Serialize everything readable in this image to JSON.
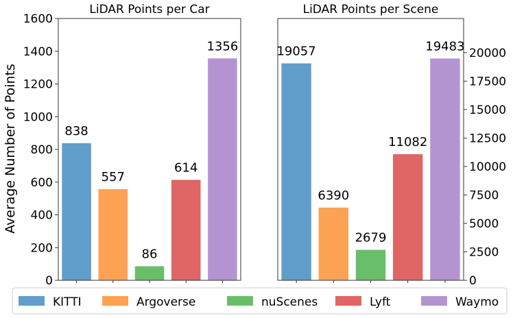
{
  "ylabel": "Average Number of Points",
  "legend": {
    "placement": "bottom",
    "entries": [
      {
        "label": "KITTI",
        "color": "#5f9ecb"
      },
      {
        "label": "Argoverse",
        "color": "#fda254"
      },
      {
        "label": "nuScenes",
        "color": "#69bf69"
      },
      {
        "label": "Lyft",
        "color": "#e06566"
      },
      {
        "label": "Waymo",
        "color": "#b394d0"
      }
    ]
  },
  "chart_data": [
    {
      "type": "bar",
      "title": "LiDAR Points per Car",
      "categories": [
        "KITTI",
        "Argoverse",
        "nuScenes",
        "Lyft",
        "Waymo"
      ],
      "values": [
        838,
        557,
        86,
        614,
        1356
      ],
      "value_labels": [
        "838",
        "557",
        "86",
        "614",
        "1356"
      ],
      "ylim": [
        0,
        1600
      ],
      "yticks": [
        0,
        200,
        400,
        600,
        800,
        1000,
        1200,
        1400,
        1600
      ],
      "ytick_labels": [
        "0",
        "200",
        "400",
        "600",
        "800",
        "1000",
        "1200",
        "1400",
        "1600"
      ],
      "yaxis_side": "left",
      "xlabel": "",
      "ylabel": "Average Number of Points",
      "grid": false
    },
    {
      "type": "bar",
      "title": "LiDAR Points per Scene",
      "categories": [
        "KITTI",
        "Argoverse",
        "nuScenes",
        "Lyft",
        "Waymo"
      ],
      "values": [
        19057,
        6390,
        2679,
        11082,
        19483
      ],
      "value_labels": [
        "19057",
        "6390",
        "2679",
        "11082",
        "19483"
      ],
      "ylim": [
        0,
        23000
      ],
      "yticks": [
        0,
        2500,
        5000,
        7500,
        10000,
        12500,
        15000,
        17500,
        20000
      ],
      "ytick_labels": [
        "0",
        "2500",
        "5000",
        "7500",
        "10000",
        "12500",
        "15000",
        "17500",
        "20000"
      ],
      "yaxis_side": "right",
      "xlabel": "",
      "ylabel": "",
      "grid": false
    }
  ]
}
